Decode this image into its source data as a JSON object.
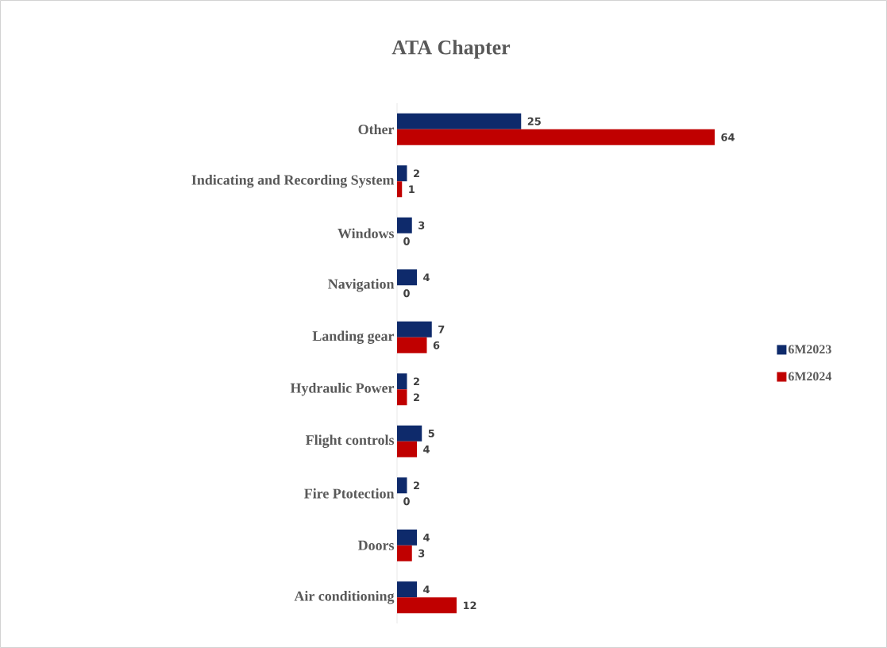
{
  "chart_data": {
    "type": "bar",
    "orientation": "horizontal",
    "title": "ATA Chapter",
    "categories": [
      "Other",
      "Indicating and Recording System",
      "Windows",
      "Navigation",
      "Landing gear",
      "Hydraulic Power",
      "Flight controls",
      "Fire Ptotection",
      "Doors",
      "Air conditioning"
    ],
    "series": [
      {
        "name": "6M2023",
        "color": "#0e2a6b",
        "values": [
          25,
          2,
          3,
          4,
          7,
          2,
          5,
          2,
          4,
          4
        ]
      },
      {
        "name": "6M2024",
        "color": "#c00000",
        "values": [
          64,
          1,
          0,
          0,
          6,
          2,
          4,
          0,
          3,
          12
        ]
      }
    ],
    "data_labels": true,
    "legend": "right"
  }
}
